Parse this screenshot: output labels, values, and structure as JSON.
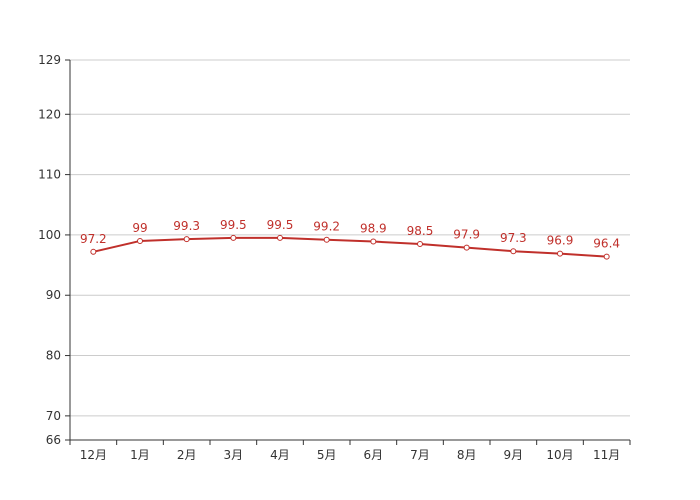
{
  "chart_data": {
    "type": "line",
    "title": "",
    "xlabel": "",
    "ylabel": "",
    "categories": [
      "12月",
      "1月",
      "2月",
      "3月",
      "4月",
      "5月",
      "6月",
      "7月",
      "8月",
      "9月",
      "10月",
      "11月"
    ],
    "series": [
      {
        "values": [
          97.2,
          99,
          99.3,
          99.5,
          99.5,
          99.2,
          98.9,
          98.5,
          97.9,
          97.3,
          96.9,
          96.4
        ]
      }
    ],
    "data_labels": [
      "97.2",
      "99",
      "99.3",
      "99.5",
      "99.5",
      "99.2",
      "98.9",
      "98.5",
      "97.9",
      "97.3",
      "96.9",
      "96.4"
    ],
    "ylim": [
      66,
      129
    ],
    "yticks": [
      66,
      70,
      80,
      90,
      100,
      110,
      120,
      129
    ],
    "ytick_labels": [
      "66",
      "70",
      "80",
      "90",
      "100",
      "110",
      "120",
      "129"
    ],
    "grid": true,
    "legend": false,
    "colors": {
      "line": "#c0302b",
      "grid": "#cccccc",
      "axis": "#333333"
    }
  }
}
